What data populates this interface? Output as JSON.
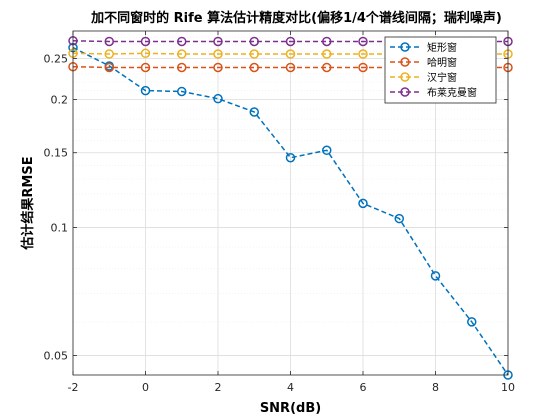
{
  "chart_data": {
    "type": "line",
    "title": "加不同窗时的 Rife 算法估计精度对比(偏移1/4个谱线间隔；瑞利噪声)",
    "xlabel": "SNR(dB)",
    "ylabel": "估计结果RMSE",
    "x": [
      -2,
      -1,
      0,
      1,
      2,
      3,
      4,
      5,
      6,
      7,
      8,
      9,
      10
    ],
    "xlim": [
      -2,
      10
    ],
    "ylim": [
      0.045,
      0.29
    ],
    "yscale": "log",
    "xticks": [
      "-2",
      "0",
      "2",
      "4",
      "6",
      "8",
      "10"
    ],
    "yticks": [
      "0.05",
      "0.1",
      "0.15",
      "0.2",
      "0.25"
    ],
    "grid": true,
    "legend_position": "top-right",
    "series": [
      {
        "name": "矩形窗",
        "color": "#0072BD",
        "values": [
          0.265,
          0.24,
          0.21,
          0.209,
          0.201,
          0.187,
          0.146,
          0.152,
          0.114,
          0.105,
          0.077,
          0.06,
          0.045
        ]
      },
      {
        "name": "哈明窗",
        "color": "#D95319",
        "values": [
          0.239,
          0.238,
          0.238,
          0.238,
          0.238,
          0.238,
          0.238,
          0.238,
          0.238,
          0.238,
          0.238,
          0.238,
          0.238
        ]
      },
      {
        "name": "汉宁窗",
        "color": "#EDB120",
        "values": [
          0.257,
          0.256,
          0.257,
          0.256,
          0.256,
          0.256,
          0.256,
          0.256,
          0.256,
          0.256,
          0.256,
          0.256,
          0.256
        ]
      },
      {
        "name": "布莱克曼窗",
        "color": "#7E2F8E",
        "values": [
          0.275,
          0.274,
          0.274,
          0.274,
          0.274,
          0.274,
          0.274,
          0.274,
          0.274,
          0.274,
          0.274,
          0.274,
          0.274
        ]
      }
    ]
  }
}
